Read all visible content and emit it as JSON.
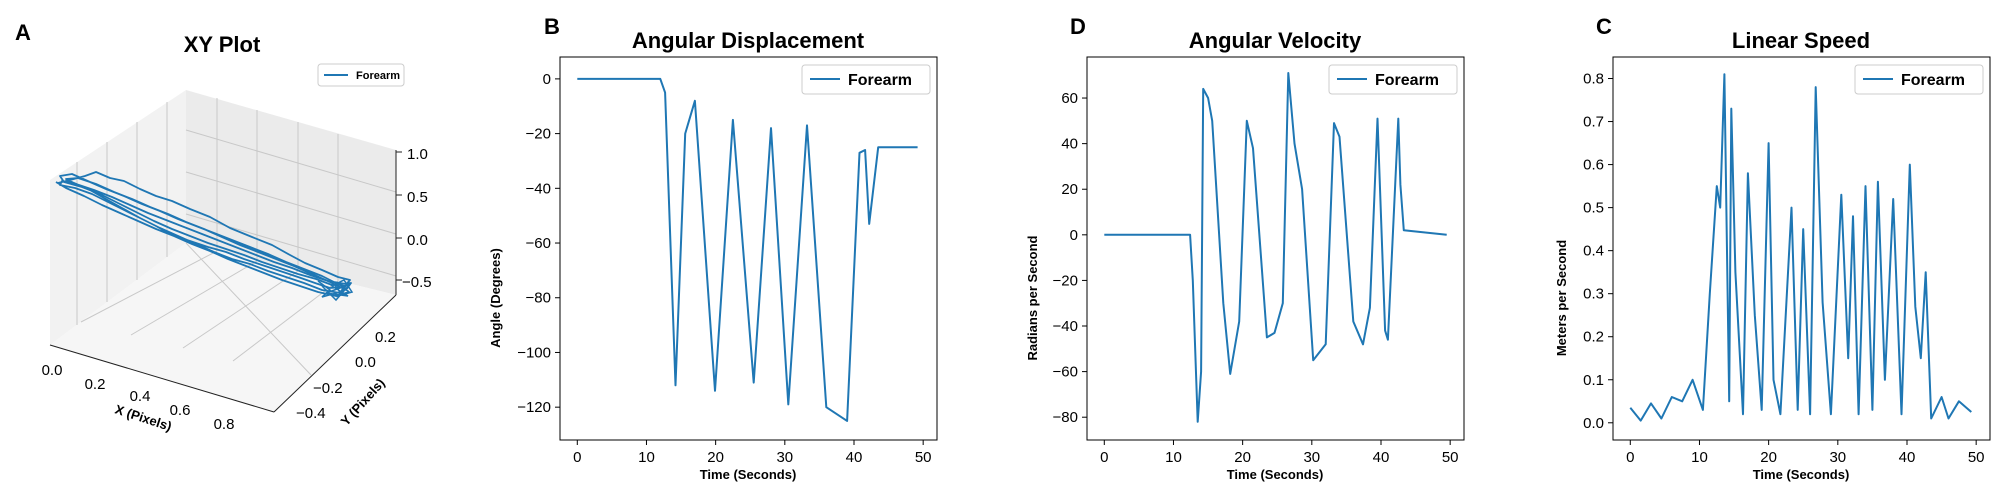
{
  "colors": {
    "series": "#1f77b4",
    "pane": "#ebebeb",
    "grid": "#c8c8c8"
  },
  "panels": {
    "A": {
      "letter": "A",
      "title": "XY Plot",
      "legend": "Forearm",
      "xlabel": "X (Pixels)",
      "ylabel": "Y (Pixels)",
      "xticks": [
        "0.0",
        "0.2",
        "0.4",
        "0.6",
        "0.8"
      ],
      "yticks": [
        "−0.4",
        "−0.2",
        "0.0",
        "0.2"
      ],
      "zticks": [
        "−0.5",
        "0.0",
        "0.5",
        "1.0"
      ]
    },
    "B": {
      "letter": "B",
      "title": "Angular Displacement",
      "legend": "Forearm",
      "xlabel": "Time (Seconds)",
      "ylabel": "Angle (Degrees)",
      "xticks": [
        "0",
        "10",
        "20",
        "30",
        "40",
        "50"
      ],
      "yticks": [
        "0",
        "−20",
        "−40",
        "−60",
        "−80",
        "−100",
        "−120"
      ]
    },
    "D": {
      "letter": "D",
      "title": "Angular Velocity",
      "legend": "Forearm",
      "xlabel": "Time (Seconds)",
      "ylabel": "Radians per Second",
      "xticks": [
        "0",
        "10",
        "20",
        "30",
        "40",
        "50"
      ],
      "yticks": [
        "60",
        "40",
        "20",
        "0",
        "−20",
        "−40",
        "−60",
        "−80"
      ]
    },
    "C": {
      "letter": "C",
      "title": "Linear Speed",
      "legend": "Forearm",
      "xlabel": "Time (Seconds)",
      "ylabel": "Meters per Second",
      "xticks": [
        "0",
        "10",
        "20",
        "30",
        "40",
        "50"
      ],
      "yticks": [
        "0.8",
        "0.7",
        "0.6",
        "0.5",
        "0.4",
        "0.3",
        "0.2",
        "0.1",
        "0.0"
      ]
    }
  },
  "chart_data": [
    {
      "panel": "A",
      "type": "line",
      "projection": "3d",
      "title": "XY Plot",
      "xlabel": "X (Pixels)",
      "ylabel": "Y (Pixels)",
      "xlim": [
        0.0,
        0.9
      ],
      "ylim": [
        -0.5,
        0.3
      ],
      "zlim": [
        -0.6,
        1.1
      ],
      "legend": "upper right",
      "series": [
        {
          "name": "Forearm",
          "note_free_trace_x": [
            0.02,
            0.12,
            0.25,
            0.4,
            0.55,
            0.7,
            0.85
          ],
          "x": [
            0.02,
            0.12,
            0.25,
            0.4,
            0.55,
            0.7,
            0.85
          ],
          "y": [
            0.2,
            0.12,
            0.05,
            -0.05,
            -0.15,
            -0.28,
            -0.42
          ]
        }
      ]
    },
    {
      "panel": "B",
      "type": "line",
      "title": "Angular Displacement",
      "xlabel": "Time (Seconds)",
      "ylabel": "Angle (Degrees)",
      "xlim": [
        -2.5,
        52
      ],
      "ylim": [
        -132,
        8
      ],
      "legend": "upper right",
      "series": [
        {
          "name": "Forearm",
          "x": [
            0,
            12,
            12.7,
            14.2,
            15.6,
            17.0,
            19.9,
            22.5,
            25.5,
            28.0,
            30.5,
            33.2,
            36.0,
            39.0,
            40.8,
            41.6,
            42.2,
            43.5,
            49.2
          ],
          "y": [
            0,
            0,
            -5,
            -112,
            -20,
            -8,
            -114,
            -15,
            -111,
            -18,
            -119,
            -17,
            -120,
            -125,
            -27,
            -26,
            -53,
            -25,
            -25
          ]
        }
      ]
    },
    {
      "panel": "D",
      "type": "line",
      "title": "Angular Velocity",
      "xlabel": "Time (Seconds)",
      "ylabel": "Radians per Second",
      "xlim": [
        -2.5,
        52
      ],
      "ylim": [
        -90,
        78
      ],
      "legend": "upper right",
      "series": [
        {
          "name": "Forearm",
          "x": [
            0,
            12.4,
            12.8,
            13.5,
            14.0,
            14.3,
            15.0,
            15.6,
            17.2,
            18.2,
            19.5,
            20.6,
            21.5,
            23.5,
            24.6,
            25.8,
            26.6,
            27.5,
            28.6,
            30.2,
            32.0,
            33.2,
            34.0,
            36.0,
            37.4,
            38.4,
            39.5,
            40.6,
            41.0,
            42.5,
            42.8,
            43.3,
            49.5
          ],
          "y": [
            0,
            0,
            -20,
            -82,
            -60,
            64,
            60,
            50,
            -30,
            -61,
            -38,
            50,
            38,
            -45,
            -43,
            -30,
            71,
            40,
            20,
            -55,
            -48,
            49,
            43,
            -38,
            -48,
            -32,
            51,
            -42,
            -46,
            51,
            22,
            2,
            0
          ]
        }
      ]
    },
    {
      "panel": "C",
      "type": "line",
      "title": "Linear Speed",
      "xlabel": "Time (Seconds)",
      "ylabel": "Meters per Second",
      "xlim": [
        -2.5,
        52
      ],
      "ylim": [
        -0.04,
        0.85
      ],
      "legend": "upper right",
      "series": [
        {
          "name": "Forearm",
          "x": [
            0,
            1.5,
            3.0,
            4.5,
            6.0,
            7.5,
            9.0,
            10.5,
            11.5,
            12.5,
            13.0,
            13.6,
            14.3,
            14.6,
            15.2,
            16.3,
            17.0,
            18.0,
            19.0,
            20.0,
            20.7,
            21.7,
            23.3,
            24.2,
            25.0,
            26.0,
            26.8,
            27.8,
            29.0,
            30.5,
            31.5,
            32.2,
            33.0,
            34.0,
            35.0,
            35.8,
            36.8,
            38.0,
            39.2,
            40.4,
            41.2,
            42.0,
            42.7,
            43.5,
            45.0,
            46.0,
            47.5,
            49.3
          ],
          "y": [
            0.035,
            0.005,
            0.045,
            0.01,
            0.06,
            0.05,
            0.1,
            0.03,
            0.3,
            0.55,
            0.5,
            0.81,
            0.05,
            0.73,
            0.35,
            0.02,
            0.58,
            0.25,
            0.03,
            0.65,
            0.1,
            0.02,
            0.5,
            0.03,
            0.45,
            0.02,
            0.78,
            0.28,
            0.02,
            0.53,
            0.15,
            0.48,
            0.02,
            0.55,
            0.03,
            0.56,
            0.1,
            0.52,
            0.02,
            0.6,
            0.27,
            0.15,
            0.35,
            0.01,
            0.06,
            0.01,
            0.05,
            0.025
          ]
        }
      ]
    }
  ]
}
